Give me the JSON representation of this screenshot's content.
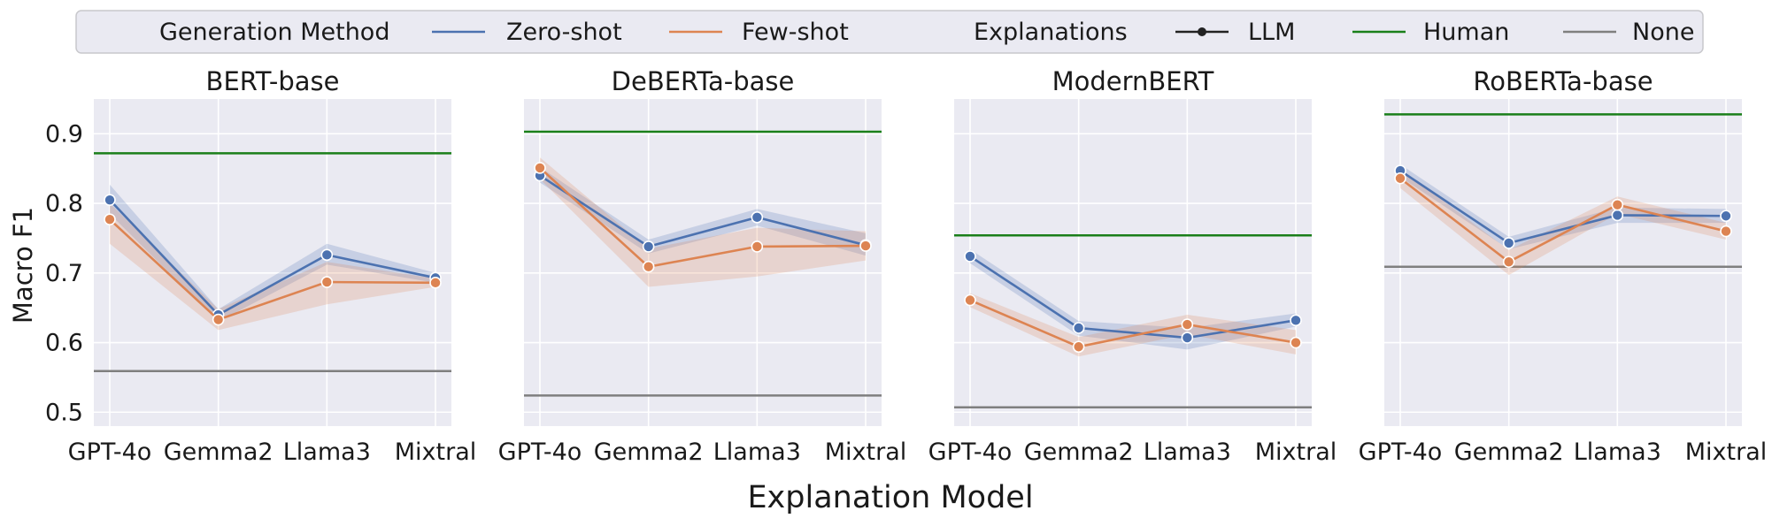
{
  "chart_data": {
    "type": "line",
    "xlabel": "Explanation Model",
    "ylabel": "Macro F1",
    "ylim": [
      0.48,
      0.95
    ],
    "yticks": [
      "0.5",
      "0.6",
      "0.7",
      "0.8",
      "0.9"
    ],
    "ytick_values": [
      0.5,
      0.6,
      0.7,
      0.8,
      0.9
    ],
    "categories": [
      "GPT-4o",
      "Gemma2",
      "Llama3",
      "Mixtral"
    ],
    "legend": {
      "placement": "top",
      "generation_title": "Generation Method",
      "zero_label": "Zero-shot",
      "few_label": "Few-shot",
      "explanations_title": "Explanations",
      "llm_label": "LLM",
      "human_label": "Human",
      "none_label": "None"
    },
    "colors": {
      "zero": "#4c72b0",
      "few": "#dd8452",
      "human": "#1a7f1a",
      "none": "#7f7f7f",
      "bg": "#eaeaf2"
    },
    "panels": [
      {
        "title": "BERT-base",
        "series": [
          {
            "name": "Zero-shot",
            "values": [
              0.805,
              0.64,
              0.726,
              0.693
            ],
            "lower": [
              0.785,
              0.63,
              0.712,
              0.686
            ],
            "upper": [
              0.827,
              0.648,
              0.742,
              0.7
            ]
          },
          {
            "name": "Few-shot",
            "values": [
              0.777,
              0.633,
              0.687,
              0.686
            ],
            "lower": [
              0.742,
              0.618,
              0.655,
              0.68
            ],
            "upper": [
              0.8,
              0.648,
              0.716,
              0.692
            ]
          }
        ],
        "human": 0.872,
        "none": 0.559
      },
      {
        "title": "DeBERTa-base",
        "series": [
          {
            "name": "Zero-shot",
            "values": [
              0.84,
              0.738,
              0.78,
              0.74
            ],
            "lower": [
              0.83,
              0.728,
              0.768,
              0.725
            ],
            "upper": [
              0.852,
              0.748,
              0.792,
              0.757
            ]
          },
          {
            "name": "Few-shot",
            "values": [
              0.851,
              0.709,
              0.738,
              0.739
            ],
            "lower": [
              0.835,
              0.68,
              0.695,
              0.718
            ],
            "upper": [
              0.866,
              0.735,
              0.765,
              0.76
            ]
          }
        ],
        "human": 0.903,
        "none": 0.524
      },
      {
        "title": "ModernBERT",
        "series": [
          {
            "name": "Zero-shot",
            "values": [
              0.724,
              0.621,
              0.607,
              0.632
            ],
            "lower": [
              0.714,
              0.61,
              0.59,
              0.623
            ],
            "upper": [
              0.734,
              0.631,
              0.621,
              0.642
            ]
          },
          {
            "name": "Few-shot",
            "values": [
              0.661,
              0.594,
              0.626,
              0.6
            ],
            "lower": [
              0.651,
              0.58,
              0.612,
              0.583
            ],
            "upper": [
              0.671,
              0.608,
              0.64,
              0.618
            ]
          }
        ],
        "human": 0.754,
        "none": 0.507
      },
      {
        "title": "RoBERTa-base",
        "series": [
          {
            "name": "Zero-shot",
            "values": [
              0.847,
              0.743,
              0.783,
              0.782
            ],
            "lower": [
              0.838,
              0.734,
              0.772,
              0.772
            ],
            "upper": [
              0.856,
              0.752,
              0.794,
              0.792
            ]
          },
          {
            "name": "Few-shot",
            "values": [
              0.836,
              0.716,
              0.798,
              0.76
            ],
            "lower": [
              0.822,
              0.697,
              0.785,
              0.748
            ],
            "upper": [
              0.85,
              0.733,
              0.81,
              0.772
            ]
          }
        ],
        "human": 0.928,
        "none": 0.709
      }
    ]
  }
}
